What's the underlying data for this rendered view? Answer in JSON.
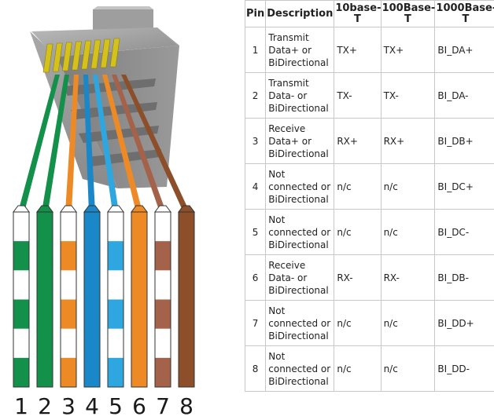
{
  "table": {
    "headers": [
      "Pin",
      "Description",
      "10base-T",
      "100Base-T",
      "1000Base-T"
    ],
    "rows": [
      {
        "pin": "1",
        "description": "Transmit Data+ or BiDirectional",
        "t10": "TX+",
        "t100": "TX+",
        "t1000": "BI_DA+"
      },
      {
        "pin": "2",
        "description": "Transmit Data- or BiDirectional",
        "t10": "TX-",
        "t100": "TX-",
        "t1000": "BI_DA-"
      },
      {
        "pin": "3",
        "description": "Receive Data+ or BiDirectional",
        "t10": "RX+",
        "t100": "RX+",
        "t1000": "BI_DB+"
      },
      {
        "pin": "4",
        "description": "Not connected or BiDirectional",
        "t10": "n/c",
        "t100": "n/c",
        "t1000": "BI_DC+"
      },
      {
        "pin": "5",
        "description": "Not connected or BiDirectional",
        "t10": "n/c",
        "t100": "n/c",
        "t1000": "BI_DC-"
      },
      {
        "pin": "6",
        "description": "Receive Data- or BiDirectional",
        "t10": "RX-",
        "t100": "RX-",
        "t1000": "BI_DB-"
      },
      {
        "pin": "7",
        "description": "Not connected or BiDirectional",
        "t10": "n/c",
        "t100": "n/c",
        "t1000": "BI_DD+"
      },
      {
        "pin": "8",
        "description": "Not connected or BiDirectional",
        "t10": "n/c",
        "t100": "n/c",
        "t1000": "BI_DD-"
      }
    ]
  },
  "wires": [
    {
      "number": "1",
      "base_color": "#ffffff",
      "stripe_color": "#13904a",
      "striped": true
    },
    {
      "number": "2",
      "base_color": "#13904a",
      "stripe_color": "#13904a",
      "striped": false
    },
    {
      "number": "3",
      "base_color": "#ffffff",
      "stripe_color": "#ee8a26",
      "striped": true
    },
    {
      "number": "4",
      "base_color": "#1987c8",
      "stripe_color": "#1987c8",
      "striped": false
    },
    {
      "number": "5",
      "base_color": "#ffffff",
      "stripe_color": "#2ea7e0",
      "striped": true
    },
    {
      "number": "6",
      "base_color": "#ee8a26",
      "stripe_color": "#ee8a26",
      "striped": false
    },
    {
      "number": "7",
      "base_color": "#ffffff",
      "stripe_color": "#a5624a",
      "striped": true
    },
    {
      "number": "8",
      "base_color": "#8c4f2a",
      "stripe_color": "#8c4f2a",
      "striped": false
    }
  ]
}
